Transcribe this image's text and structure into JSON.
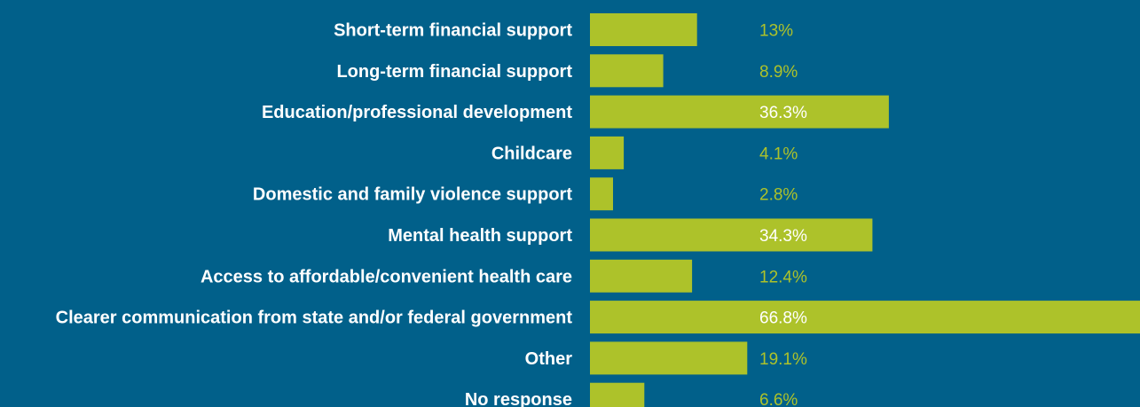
{
  "chart_data": {
    "type": "bar",
    "orientation": "horizontal",
    "categories": [
      "Short-term financial support",
      "Long-term financial support",
      "Education/professional development",
      "Childcare",
      "Domestic and family violence support",
      "Mental health support",
      "Access to affordable/convenient health care",
      "Clearer communication from state and/or federal government",
      "Other",
      "No response"
    ],
    "values": [
      13,
      8.9,
      36.3,
      4.1,
      2.8,
      34.3,
      12.4,
      66.8,
      19.1,
      6.6
    ],
    "value_labels": [
      "13%",
      "8.9%",
      "36.3%",
      "4.1%",
      "2.8%",
      "34.3%",
      "12.4%",
      "66.8%",
      "19.1%",
      "6.6%"
    ],
    "title": "",
    "xlabel": "",
    "ylabel": "",
    "xlim": [
      0,
      66.8
    ],
    "grid": false,
    "legend": "none"
  },
  "colors": {
    "background": "#01608a",
    "bar": "#adc22a",
    "category_text": "#ffffff",
    "value_text_on_background": "#adc22a",
    "value_text_on_bar": "#ffffff"
  }
}
